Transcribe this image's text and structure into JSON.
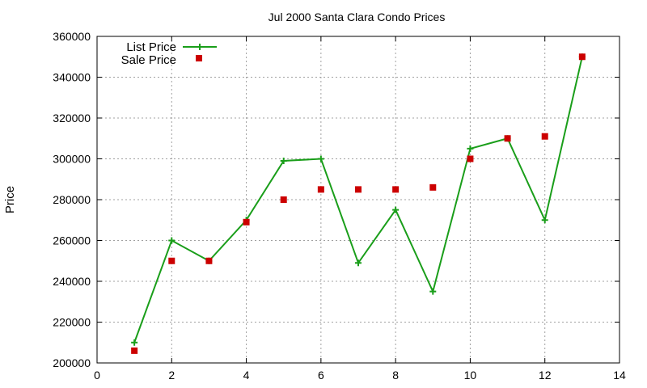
{
  "chart_data": {
    "type": "line",
    "title": "Jul 2000 Santa Clara Condo Prices",
    "xlabel": "",
    "ylabel": "Price",
    "xlim": [
      0,
      14
    ],
    "ylim": [
      200000,
      360000
    ],
    "x_ticks": [
      0,
      2,
      4,
      6,
      8,
      10,
      12,
      14
    ],
    "y_ticks": [
      200000,
      220000,
      240000,
      260000,
      280000,
      300000,
      320000,
      340000,
      360000
    ],
    "grid": true,
    "legend_position": "top-left",
    "series": [
      {
        "name": "List Price",
        "style": "linespoints",
        "color": "#1a9e1a",
        "x": [
          1,
          2,
          3,
          4,
          5,
          6,
          7,
          8,
          9,
          10,
          11,
          12,
          13
        ],
        "y": [
          210000,
          260000,
          250000,
          270000,
          299000,
          300000,
          249000,
          275000,
          235000,
          305000,
          310000,
          270000,
          350000
        ]
      },
      {
        "name": "Sale Price",
        "style": "points",
        "color": "#cc0000",
        "x": [
          1,
          2,
          3,
          4,
          5,
          6,
          7,
          8,
          9,
          10,
          11,
          12,
          13
        ],
        "y": [
          206000,
          250000,
          250000,
          269000,
          280000,
          285000,
          285000,
          285000,
          286000,
          300000,
          310000,
          311000,
          350000
        ]
      }
    ]
  }
}
